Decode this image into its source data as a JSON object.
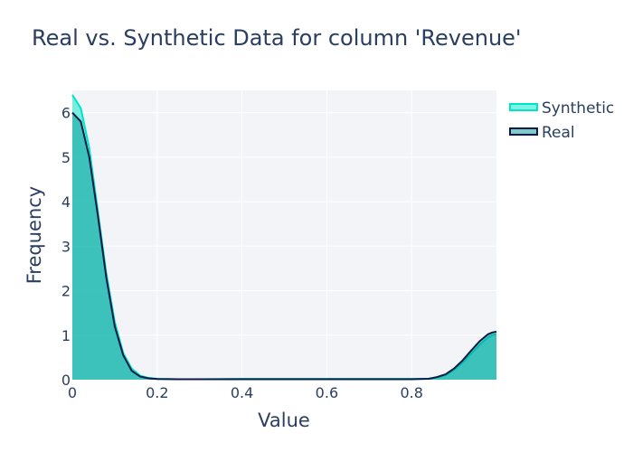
{
  "chart_data": {
    "type": "area",
    "title": "Real vs. Synthetic Data for column 'Revenue'",
    "xlabel": "Value",
    "ylabel": "Frequency",
    "xlim": [
      0,
      1
    ],
    "ylim": [
      0,
      6.5
    ],
    "x_ticks": [
      "0",
      "0.2",
      "0.4",
      "0.6",
      "0.8"
    ],
    "x_tick_values": [
      0,
      0.2,
      0.4,
      0.6,
      0.8
    ],
    "y_ticks": [
      "0",
      "1",
      "2",
      "3",
      "4",
      "5",
      "6"
    ],
    "y_tick_values": [
      0,
      1,
      2,
      3,
      4,
      5,
      6
    ],
    "grid": true,
    "legend_position": "top-right",
    "x": [
      0,
      0.02,
      0.04,
      0.06,
      0.08,
      0.1,
      0.12,
      0.14,
      0.16,
      0.18,
      0.2,
      0.25,
      0.3,
      0.4,
      0.5,
      0.6,
      0.7,
      0.8,
      0.84,
      0.86,
      0.88,
      0.9,
      0.92,
      0.94,
      0.96,
      0.98,
      0.99,
      1.0
    ],
    "series": [
      {
        "name": "Synthetic",
        "color": "#00e5c8",
        "fill": "rgba(0, 229, 200, 0.5)",
        "values": [
          6.4,
          6.1,
          5.2,
          3.8,
          2.4,
          1.3,
          0.6,
          0.25,
          0.09,
          0.04,
          0.02,
          0.01,
          0.01,
          0.02,
          0.02,
          0.02,
          0.02,
          0.02,
          0.02,
          0.05,
          0.1,
          0.22,
          0.38,
          0.58,
          0.78,
          0.95,
          1.0,
          1.02
        ]
      },
      {
        "name": "Real",
        "color": "#0b1a48",
        "fill": "rgba(0, 150, 150, 0.5)",
        "values": [
          6.0,
          5.8,
          5.0,
          3.7,
          2.3,
          1.2,
          0.55,
          0.2,
          0.07,
          0.03,
          0.015,
          0.01,
          0.01,
          0.01,
          0.01,
          0.01,
          0.01,
          0.01,
          0.02,
          0.06,
          0.12,
          0.25,
          0.43,
          0.65,
          0.86,
          1.02,
          1.06,
          1.08
        ]
      }
    ]
  }
}
